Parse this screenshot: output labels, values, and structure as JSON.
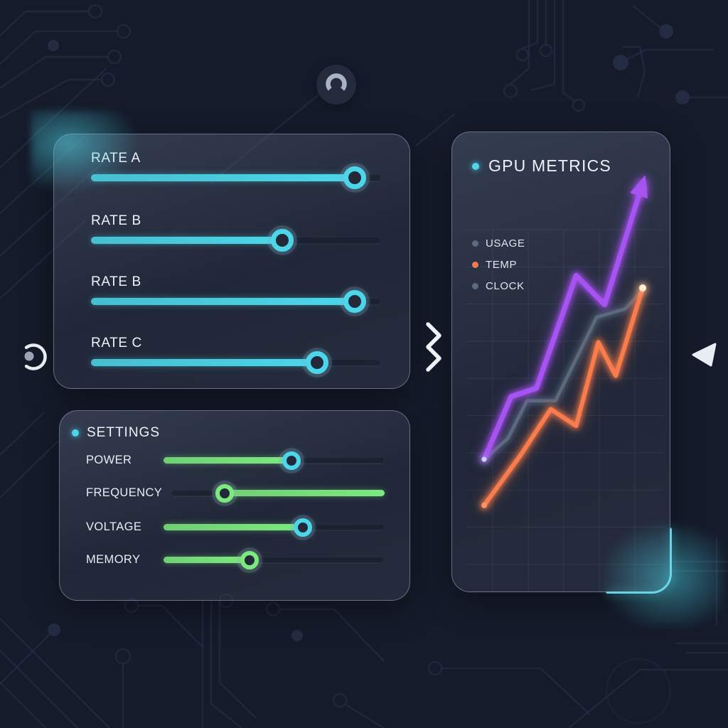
{
  "colors": {
    "accent": "#4bd7e9",
    "green": "#7ce97f",
    "purple": "#a753f2",
    "orange": "#f87c4c",
    "slate": "#5b6a7d",
    "background": "#151b2a",
    "circuit_trace": "#2a3450",
    "panel_border": "#9aa6be",
    "text": "#eef2f8"
  },
  "icons": {
    "top_badge": "arc-ring-icon",
    "left": "progress-circle-icon",
    "divider": "zigzag-chevrons-icon",
    "right": "back-triangle-icon"
  },
  "rates_panel": {
    "sliders": [
      {
        "label": "RATE A",
        "value": 91,
        "fill_color": "#4bd7e9",
        "knob_color": "#4bd7e9",
        "fill_side": "left"
      },
      {
        "label": "RATE B",
        "value": 66,
        "fill_color": "#4bd7e9",
        "knob_color": "#4bd7e9",
        "fill_side": "left"
      },
      {
        "label": "RATE B",
        "value": 91,
        "fill_color": "#4bd7e9",
        "knob_color": "#4bd7e9",
        "fill_side": "left"
      },
      {
        "label": "RATE C",
        "value": 78,
        "fill_color": "#4bd7e9",
        "knob_color": "#4bd7e9",
        "fill_side": "left"
      }
    ]
  },
  "settings_panel": {
    "title": "SETTINGS",
    "sliders": [
      {
        "label": "POWER",
        "value": 58,
        "fill_color": "#7ce97f",
        "knob_color": "#4bd7e9",
        "fill_side": "left"
      },
      {
        "label": "FREQUENCY",
        "value": 25,
        "fill_color": "#7ce97f",
        "knob_color": "#7ce97f",
        "fill_side": "right"
      },
      {
        "label": "VOLTAGE",
        "value": 63,
        "fill_color": "#7ce97f",
        "knob_color": "#4bd7e9",
        "fill_side": "left"
      },
      {
        "label": "MEMORY",
        "value": 39,
        "fill_color": "#7ce97f",
        "knob_color": "#7ce97f",
        "fill_side": "left"
      }
    ]
  },
  "metrics_panel": {
    "title": "GPU METRICS",
    "legend": [
      {
        "label": "USAGE",
        "color": "#5c6a82"
      },
      {
        "label": "TEMP",
        "color": "#f2794d"
      },
      {
        "label": "CLOCK",
        "color": "#5c6a82"
      }
    ]
  },
  "chart_data": {
    "type": "line",
    "title": "GPU METRICS",
    "xlabel": "",
    "ylabel": "",
    "x_range": [
      0,
      100
    ],
    "y_range": [
      0,
      100
    ],
    "grid": true,
    "legend_position": "top-left",
    "series": [
      {
        "name": "CLOCK",
        "color": "#5b6a7d",
        "width": 4.5,
        "arrow_end": false,
        "x": [
          0,
          15,
          27,
          45,
          71,
          89,
          99
        ],
        "y": [
          34,
          39,
          48,
          48,
          68,
          70,
          74
        ]
      },
      {
        "name": "USAGE",
        "color": "#a753f2",
        "width": 7,
        "arrow_end": true,
        "x": [
          0,
          17,
          33,
          58,
          76,
          100
        ],
        "y": [
          34,
          49,
          51,
          78,
          71,
          100
        ]
      },
      {
        "name": "TEMP",
        "color": "#f87c4c",
        "width": 6,
        "arrow_end": false,
        "x": [
          0,
          23,
          42,
          58,
          72,
          83,
          100
        ],
        "y": [
          23,
          35,
          46,
          42,
          62,
          54,
          75
        ]
      }
    ],
    "markers": [
      {
        "x": 0,
        "y": 34,
        "r": 3.5,
        "color": "#c7d4ff"
      },
      {
        "x": 0,
        "y": 23,
        "r": 4,
        "color": "#ff9161"
      },
      {
        "x": 100,
        "y": 75,
        "r": 5,
        "color": "#ffeecd"
      }
    ]
  }
}
